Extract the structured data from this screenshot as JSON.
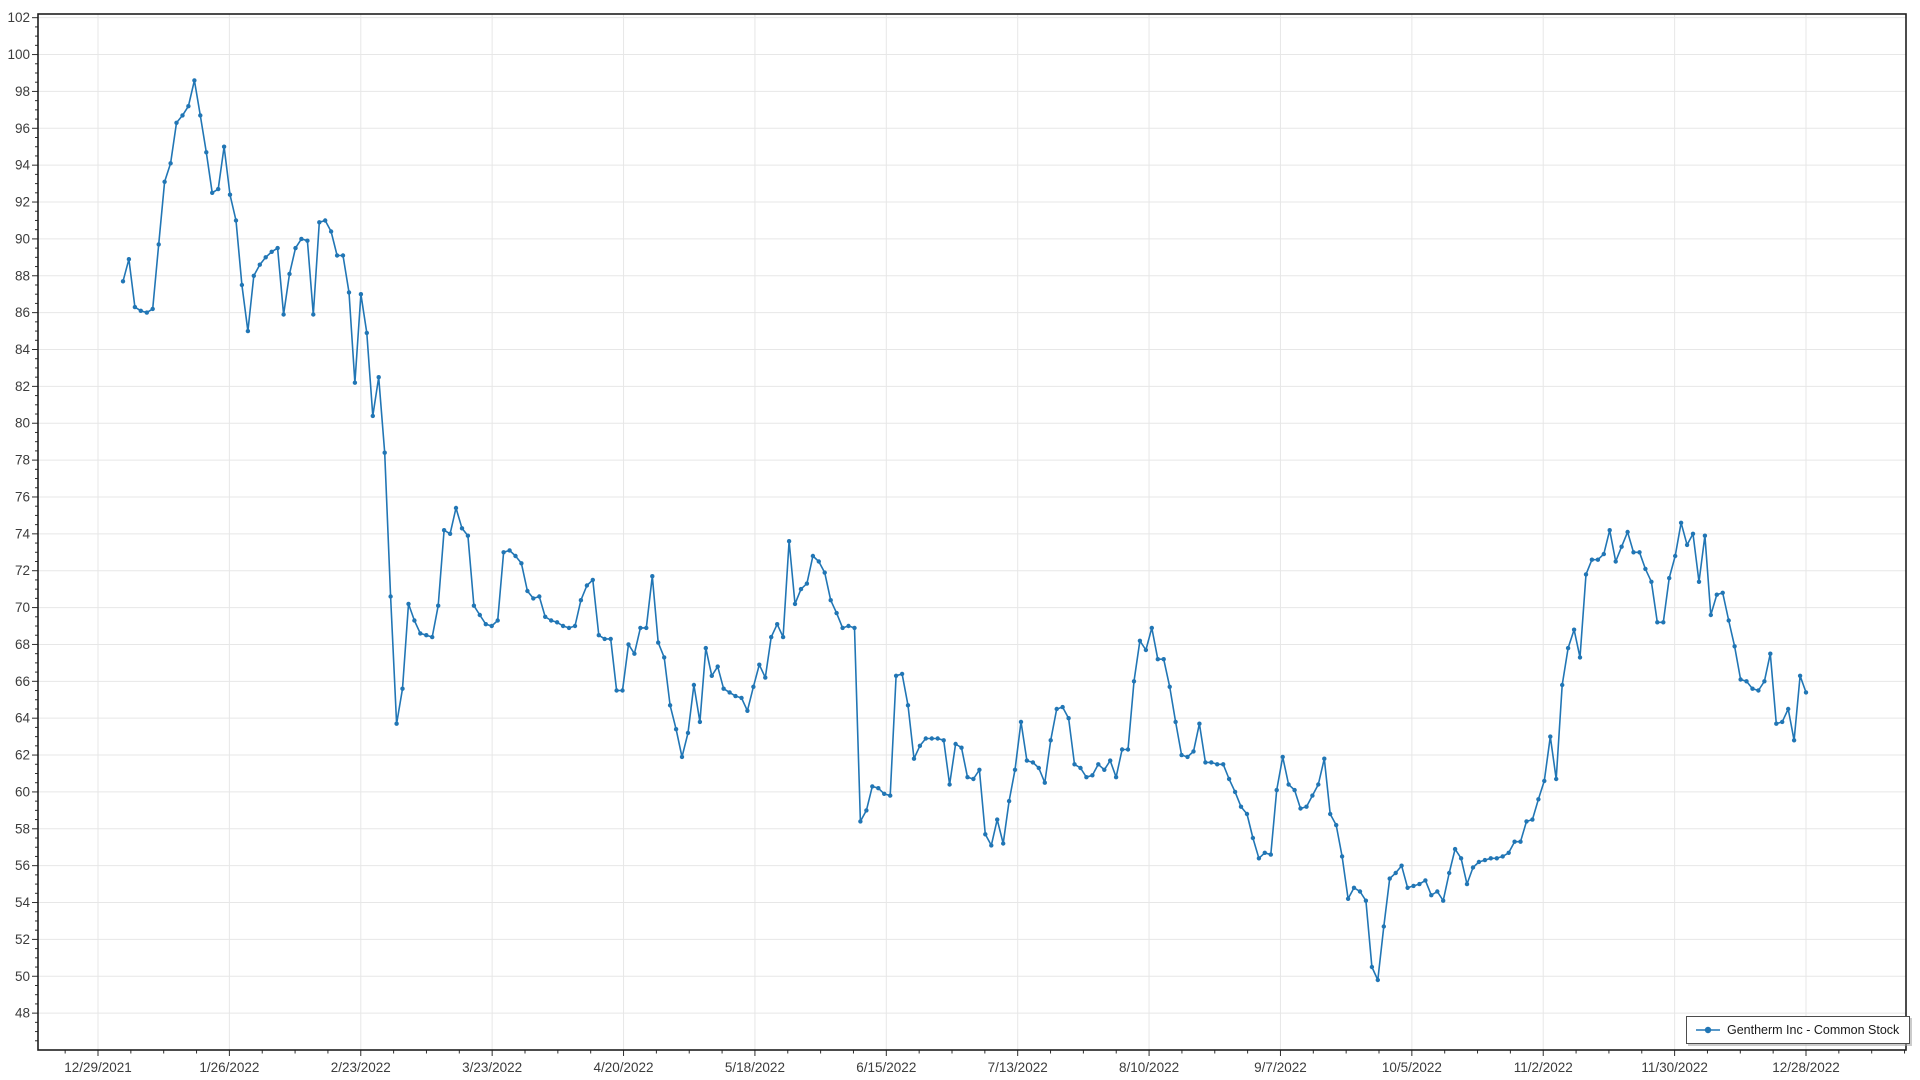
{
  "chart_data": {
    "type": "line",
    "title": "",
    "legend_position": "bottom-right",
    "grid": true,
    "xlabel": "",
    "ylabel": "",
    "x_tick_labels": [
      "12/29/2021",
      "1/26/2022",
      "2/23/2022",
      "3/23/2022",
      "4/20/2022",
      "5/18/2022",
      "6/15/2022",
      "7/13/2022",
      "8/10/2022",
      "9/7/2022",
      "10/5/2022",
      "11/2/2022",
      "11/30/2022",
      "12/28/2022"
    ],
    "y_ticks": [
      48,
      50,
      52,
      54,
      56,
      58,
      60,
      62,
      64,
      66,
      68,
      70,
      72,
      74,
      76,
      78,
      80,
      82,
      84,
      86,
      88,
      90,
      92,
      94,
      96,
      98,
      100,
      102
    ],
    "y_minor_step": 0.5,
    "x_minor_per_major": 4,
    "ylim": [
      46,
      102.2
    ],
    "series": [
      {
        "name": "Gentherm Inc - Common Stock",
        "color": "#2176b5",
        "marker": "circle",
        "values": [
          87.7,
          88.9,
          86.3,
          86.1,
          86.0,
          86.2,
          89.7,
          93.1,
          94.1,
          96.3,
          96.7,
          97.2,
          98.6,
          96.7,
          94.7,
          92.5,
          92.7,
          95.0,
          92.4,
          91.0,
          87.5,
          85.0,
          88.0,
          88.6,
          89.0,
          89.3,
          89.5,
          85.9,
          88.1,
          89.5,
          90.0,
          89.9,
          85.9,
          90.9,
          91.0,
          90.4,
          89.1,
          89.1,
          87.1,
          82.2,
          87.0,
          84.9,
          80.4,
          82.5,
          78.4,
          70.6,
          63.7,
          65.6,
          70.2,
          69.3,
          68.6,
          68.5,
          68.4,
          70.1,
          74.2,
          74.0,
          75.4,
          74.3,
          73.9,
          70.1,
          69.6,
          69.1,
          69.0,
          69.3,
          73.0,
          73.1,
          72.8,
          72.4,
          70.9,
          70.5,
          70.6,
          69.5,
          69.3,
          69.2,
          69.0,
          68.9,
          69.0,
          70.4,
          71.2,
          71.5,
          68.5,
          68.3,
          68.3,
          65.5,
          65.5,
          68.0,
          67.5,
          68.9,
          68.9,
          71.7,
          68.1,
          67.3,
          64.7,
          63.4,
          61.9,
          63.2,
          65.8,
          63.8,
          67.8,
          66.3,
          66.8,
          65.6,
          65.4,
          65.2,
          65.1,
          64.4,
          65.7,
          66.9,
          66.2,
          68.4,
          69.1,
          68.4,
          73.6,
          70.2,
          71.0,
          71.3,
          72.8,
          72.5,
          71.9,
          70.4,
          69.7,
          68.9,
          69.0,
          68.9,
          58.4,
          59.0,
          60.3,
          60.2,
          59.9,
          59.8,
          66.3,
          66.4,
          64.7,
          61.8,
          62.5,
          62.9,
          62.9,
          62.9,
          62.8,
          60.4,
          62.6,
          62.4,
          60.8,
          60.7,
          61.2,
          57.7,
          57.1,
          58.5,
          57.2,
          59.5,
          61.2,
          63.8,
          61.7,
          61.6,
          61.3,
          60.5,
          62.8,
          64.5,
          64.6,
          64.0,
          61.5,
          61.3,
          60.8,
          60.9,
          61.5,
          61.2,
          61.7,
          60.8,
          62.3,
          62.3,
          66.0,
          68.2,
          67.7,
          68.9,
          67.2,
          67.2,
          65.7,
          63.8,
          62.0,
          61.9,
          62.2,
          63.7,
          61.6,
          61.6,
          61.5,
          61.5,
          60.7,
          60.0,
          59.2,
          58.8,
          57.5,
          56.4,
          56.7,
          56.6,
          60.1,
          61.9,
          60.4,
          60.1,
          59.1,
          59.2,
          59.8,
          60.4,
          61.8,
          58.8,
          58.2,
          56.5,
          54.2,
          54.8,
          54.6,
          54.1,
          50.5,
          49.8,
          52.7,
          55.3,
          55.6,
          56.0,
          54.8,
          54.9,
          55.0,
          55.2,
          54.4,
          54.6,
          54.1,
          55.6,
          56.9,
          56.4,
          55.0,
          55.9,
          56.2,
          56.3,
          56.4,
          56.4,
          56.5,
          56.7,
          57.3,
          57.3,
          58.4,
          58.5,
          59.6,
          60.6,
          63.0,
          60.7,
          65.8,
          67.8,
          68.8,
          67.3,
          71.8,
          72.6,
          72.6,
          72.9,
          74.2,
          72.5,
          73.3,
          74.1,
          73.0,
          73.0,
          72.1,
          71.4,
          69.2,
          69.2,
          71.6,
          72.8,
          74.6,
          73.4,
          74.0,
          71.4,
          73.9,
          69.6,
          70.7,
          70.8,
          69.3,
          67.9,
          66.1,
          66.0,
          65.6,
          65.5,
          66.0,
          67.5,
          63.7,
          63.8,
          64.5,
          62.8,
          66.3,
          65.4
        ]
      }
    ]
  },
  "legend": {
    "label": "Gentherm Inc - Common Stock"
  },
  "colors": {
    "line": "#2176b5",
    "grid": "#e7e7e7",
    "frame": "#1f1f1f",
    "tick": "#2e2e2e",
    "label": "#3c3c3c",
    "background": "#ffffff"
  }
}
